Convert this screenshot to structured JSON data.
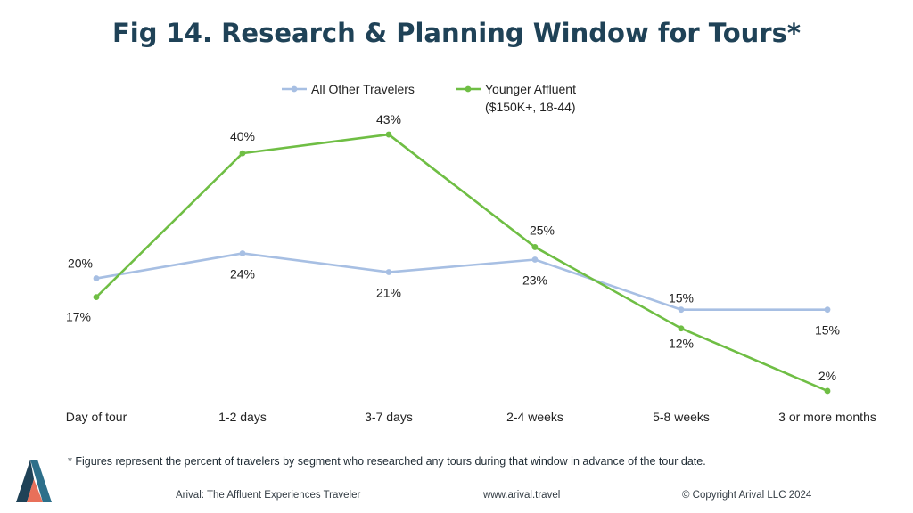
{
  "title": "Fig 14. Research & Planning Window for Tours*",
  "footnote": "* Figures represent the percent of travelers by segment who researched any tours during that window in advance of the tour date.",
  "footer": {
    "left": "Arival: The  Affluent Experiences Traveler",
    "center": "www.arival.travel",
    "right": "© Copyright Arival LLC 2024"
  },
  "colors": {
    "series_1": "#a7bfe3",
    "series_2": "#6fbe44",
    "title": "#1f4257",
    "logo_dark": "#1f4257",
    "logo_accent": "#e8705a"
  },
  "chart_data": {
    "type": "line",
    "title": "Fig 14. Research & Planning Window for Tours*",
    "categories": [
      "Day of tour",
      "1-2 days",
      "3-7 days",
      "2-4 weeks",
      "5-8 weeks",
      "3 or more months"
    ],
    "series": [
      {
        "name": "All Other Travelers",
        "values": [
          20,
          24,
          21,
          23,
          15,
          15
        ],
        "labels": [
          "20%",
          "24%",
          "21%",
          "23%",
          "15%",
          "15%"
        ],
        "color": "#a7bfe3"
      },
      {
        "name": "Younger Affluent",
        "name_line2": "($150K+, 18-44)",
        "values": [
          17,
          40,
          43,
          25,
          12,
          2
        ],
        "labels": [
          "17%",
          "40%",
          "43%",
          "25%",
          "12%",
          "2%"
        ],
        "color": "#6fbe44"
      }
    ],
    "legend": "top",
    "grid": false,
    "ylim": [
      0,
      45
    ]
  }
}
